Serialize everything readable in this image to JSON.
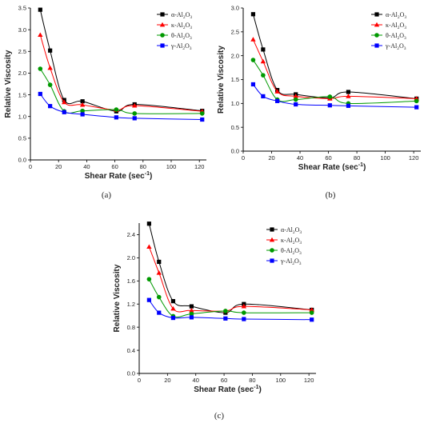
{
  "chart_data": [
    {
      "type": "line",
      "panel_label": "(a)",
      "xlabel_main": "Shear Rate (sec",
      "xlabel_sup": "-1",
      "xlabel_close": ")",
      "ylabel": "Relative Viscosity",
      "xlim": [
        0,
        125
      ],
      "ylim": [
        0,
        3.5
      ],
      "xticks": [
        "0",
        "20",
        "40",
        "60",
        "80",
        "100",
        "120"
      ],
      "yticks": [
        "0.0",
        "0.5",
        "1.0",
        "1.5",
        "2.0",
        "2.5",
        "3.0",
        "3.5"
      ],
      "x": [
        7,
        14,
        24,
        37,
        61,
        74,
        122
      ],
      "legend_position": "top-right",
      "series": [
        {
          "prefix": "α-Al",
          "sub1": "2",
          "mid": "O",
          "sub2": "3",
          "color": "#000000",
          "marker": "square",
          "values": [
            3.46,
            2.52,
            1.38,
            1.35,
            1.12,
            1.28,
            1.13
          ]
        },
        {
          "prefix": "κ-Al",
          "sub1": "2",
          "mid": "O",
          "sub2": "3",
          "color": "#ff0000",
          "marker": "triangle",
          "values": [
            2.88,
            2.12,
            1.33,
            1.27,
            1.15,
            1.25,
            1.12
          ]
        },
        {
          "prefix": "θ-Al",
          "sub1": "2",
          "mid": "O",
          "sub2": "3",
          "color": "#009900",
          "marker": "circle",
          "values": [
            2.1,
            1.73,
            1.12,
            1.13,
            1.16,
            1.07,
            1.07
          ]
        },
        {
          "prefix": "γ-Al",
          "sub1": "2",
          "mid": "O",
          "sub2": "3",
          "color": "#0000ff",
          "marker": "square",
          "values": [
            1.52,
            1.24,
            1.1,
            1.05,
            0.98,
            0.96,
            0.93
          ]
        }
      ]
    },
    {
      "type": "line",
      "panel_label": "(b)",
      "xlabel_main": "Shear Rate (sec",
      "xlabel_sup": "-1",
      "xlabel_close": ")",
      "ylabel": "Relative Viscosity",
      "xlim": [
        0,
        125
      ],
      "ylim": [
        0,
        3.0
      ],
      "xticks": [
        "0",
        "20",
        "40",
        "60",
        "80",
        "100",
        "120"
      ],
      "yticks": [
        "0.0",
        "0.5",
        "1.0",
        "1.5",
        "2.0",
        "2.5",
        "3.0"
      ],
      "x": [
        7,
        14,
        24,
        37,
        61,
        74,
        122
      ],
      "legend_position": "top-right",
      "series": [
        {
          "prefix": "α-Al",
          "sub1": "2",
          "mid": "O",
          "sub2": "3",
          "color": "#000000",
          "marker": "square",
          "values": [
            2.87,
            2.13,
            1.28,
            1.19,
            1.12,
            1.24,
            1.1
          ]
        },
        {
          "prefix": "κ-Al",
          "sub1": "2",
          "mid": "O",
          "sub2": "3",
          "color": "#ff0000",
          "marker": "triangle",
          "values": [
            2.34,
            1.88,
            1.25,
            1.15,
            1.1,
            1.15,
            1.1
          ]
        },
        {
          "prefix": "θ-Al",
          "sub1": "2",
          "mid": "O",
          "sub2": "3",
          "color": "#009900",
          "marker": "circle",
          "values": [
            1.91,
            1.59,
            1.08,
            1.08,
            1.14,
            1.0,
            1.05
          ]
        },
        {
          "prefix": "γ-Al",
          "sub1": "2",
          "mid": "O",
          "sub2": "3",
          "color": "#0000ff",
          "marker": "square",
          "values": [
            1.4,
            1.15,
            1.05,
            0.98,
            0.96,
            0.95,
            0.92
          ]
        }
      ]
    },
    {
      "type": "line",
      "panel_label": "(c)",
      "xlabel_main": "Shear Rate (sec",
      "xlabel_sup": "-1",
      "xlabel_close": ")",
      "ylabel": "Relative Viscosity",
      "xlim": [
        0,
        125
      ],
      "ylim": [
        0,
        2.6
      ],
      "xticks": [
        "0",
        "20",
        "40",
        "60",
        "80",
        "100",
        "120"
      ],
      "yticks": [
        "0.0",
        "0.4",
        "0.8",
        "1.2",
        "1.6",
        "2.0",
        "2.4"
      ],
      "x": [
        7,
        14,
        24,
        37,
        61,
        74,
        122
      ],
      "legend_position": "top-right",
      "series": [
        {
          "prefix": "α-Al",
          "sub1": "2",
          "mid": "O",
          "sub2": "3",
          "color": "#000000",
          "marker": "square",
          "values": [
            2.59,
            1.93,
            1.25,
            1.16,
            1.05,
            1.2,
            1.1
          ]
        },
        {
          "prefix": "κ-Al",
          "sub1": "2",
          "mid": "O",
          "sub2": "3",
          "color": "#ff0000",
          "marker": "triangle",
          "values": [
            2.19,
            1.74,
            1.12,
            1.09,
            1.08,
            1.16,
            1.1
          ]
        },
        {
          "prefix": "θ-Al",
          "sub1": "2",
          "mid": "O",
          "sub2": "3",
          "color": "#009900",
          "marker": "circle",
          "values": [
            1.63,
            1.32,
            0.99,
            1.03,
            1.08,
            1.05,
            1.05
          ]
        },
        {
          "prefix": "γ-Al",
          "sub1": "2",
          "mid": "O",
          "sub2": "3",
          "color": "#0000ff",
          "marker": "square",
          "values": [
            1.27,
            1.05,
            0.96,
            0.97,
            0.95,
            0.94,
            0.93
          ]
        }
      ]
    }
  ]
}
